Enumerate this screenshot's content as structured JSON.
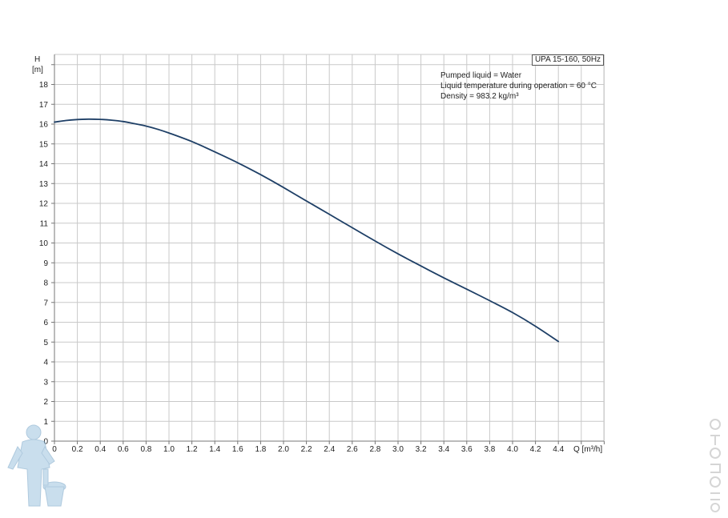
{
  "legend_title": "UPA 15-160, 50Hz",
  "notes": [
    "Pumped liquid = Water",
    "Liquid temperature during operation = 60 °C",
    "Density = 983.2 kg/m³"
  ],
  "colors": {
    "curve": "#1e3f66",
    "grid": "#c9c9c9",
    "axis": "#777777"
  },
  "chart_data": {
    "type": "line",
    "title": "UPA 15-160, 50Hz",
    "ylabel_top": "H",
    "ylabel_bottom": "[m]",
    "xlabel": "Q [m³/h]",
    "xlim": [
      0,
      4.8
    ],
    "ylim": [
      0,
      19
    ],
    "grid": true,
    "x_ticks": [
      "0",
      "0.2",
      "0.4",
      "0.6",
      "0.8",
      "1.0",
      "1.2",
      "1.4",
      "1.6",
      "1.8",
      "2.0",
      "2.2",
      "2.4",
      "2.6",
      "2.8",
      "3.0",
      "3.2",
      "3.4",
      "3.6",
      "3.8",
      "4.0",
      "4.2",
      "4.4"
    ],
    "y_ticks": [
      "0",
      "1",
      "2",
      "3",
      "4",
      "5",
      "6",
      "7",
      "8",
      "9",
      "10",
      "11",
      "12",
      "13",
      "14",
      "15",
      "16",
      "17",
      "18"
    ],
    "series": [
      {
        "x": [
          0,
          0.1,
          0.2,
          0.3,
          0.4,
          0.5,
          0.6,
          0.7,
          0.8,
          0.9,
          1.0,
          1.2,
          1.4,
          1.6,
          1.8,
          2.0,
          2.2,
          2.4,
          2.6,
          2.8,
          3.0,
          3.2,
          3.4,
          3.6,
          3.8,
          4.0,
          4.2,
          4.4
        ],
        "y": [
          16.1,
          16.18,
          16.23,
          16.25,
          16.24,
          16.2,
          16.13,
          16.02,
          15.9,
          15.74,
          15.55,
          15.12,
          14.6,
          14.05,
          13.45,
          12.8,
          12.12,
          11.45,
          10.77,
          10.1,
          9.45,
          8.84,
          8.24,
          7.67,
          7.09,
          6.49,
          5.8,
          5.03
        ]
      }
    ]
  }
}
